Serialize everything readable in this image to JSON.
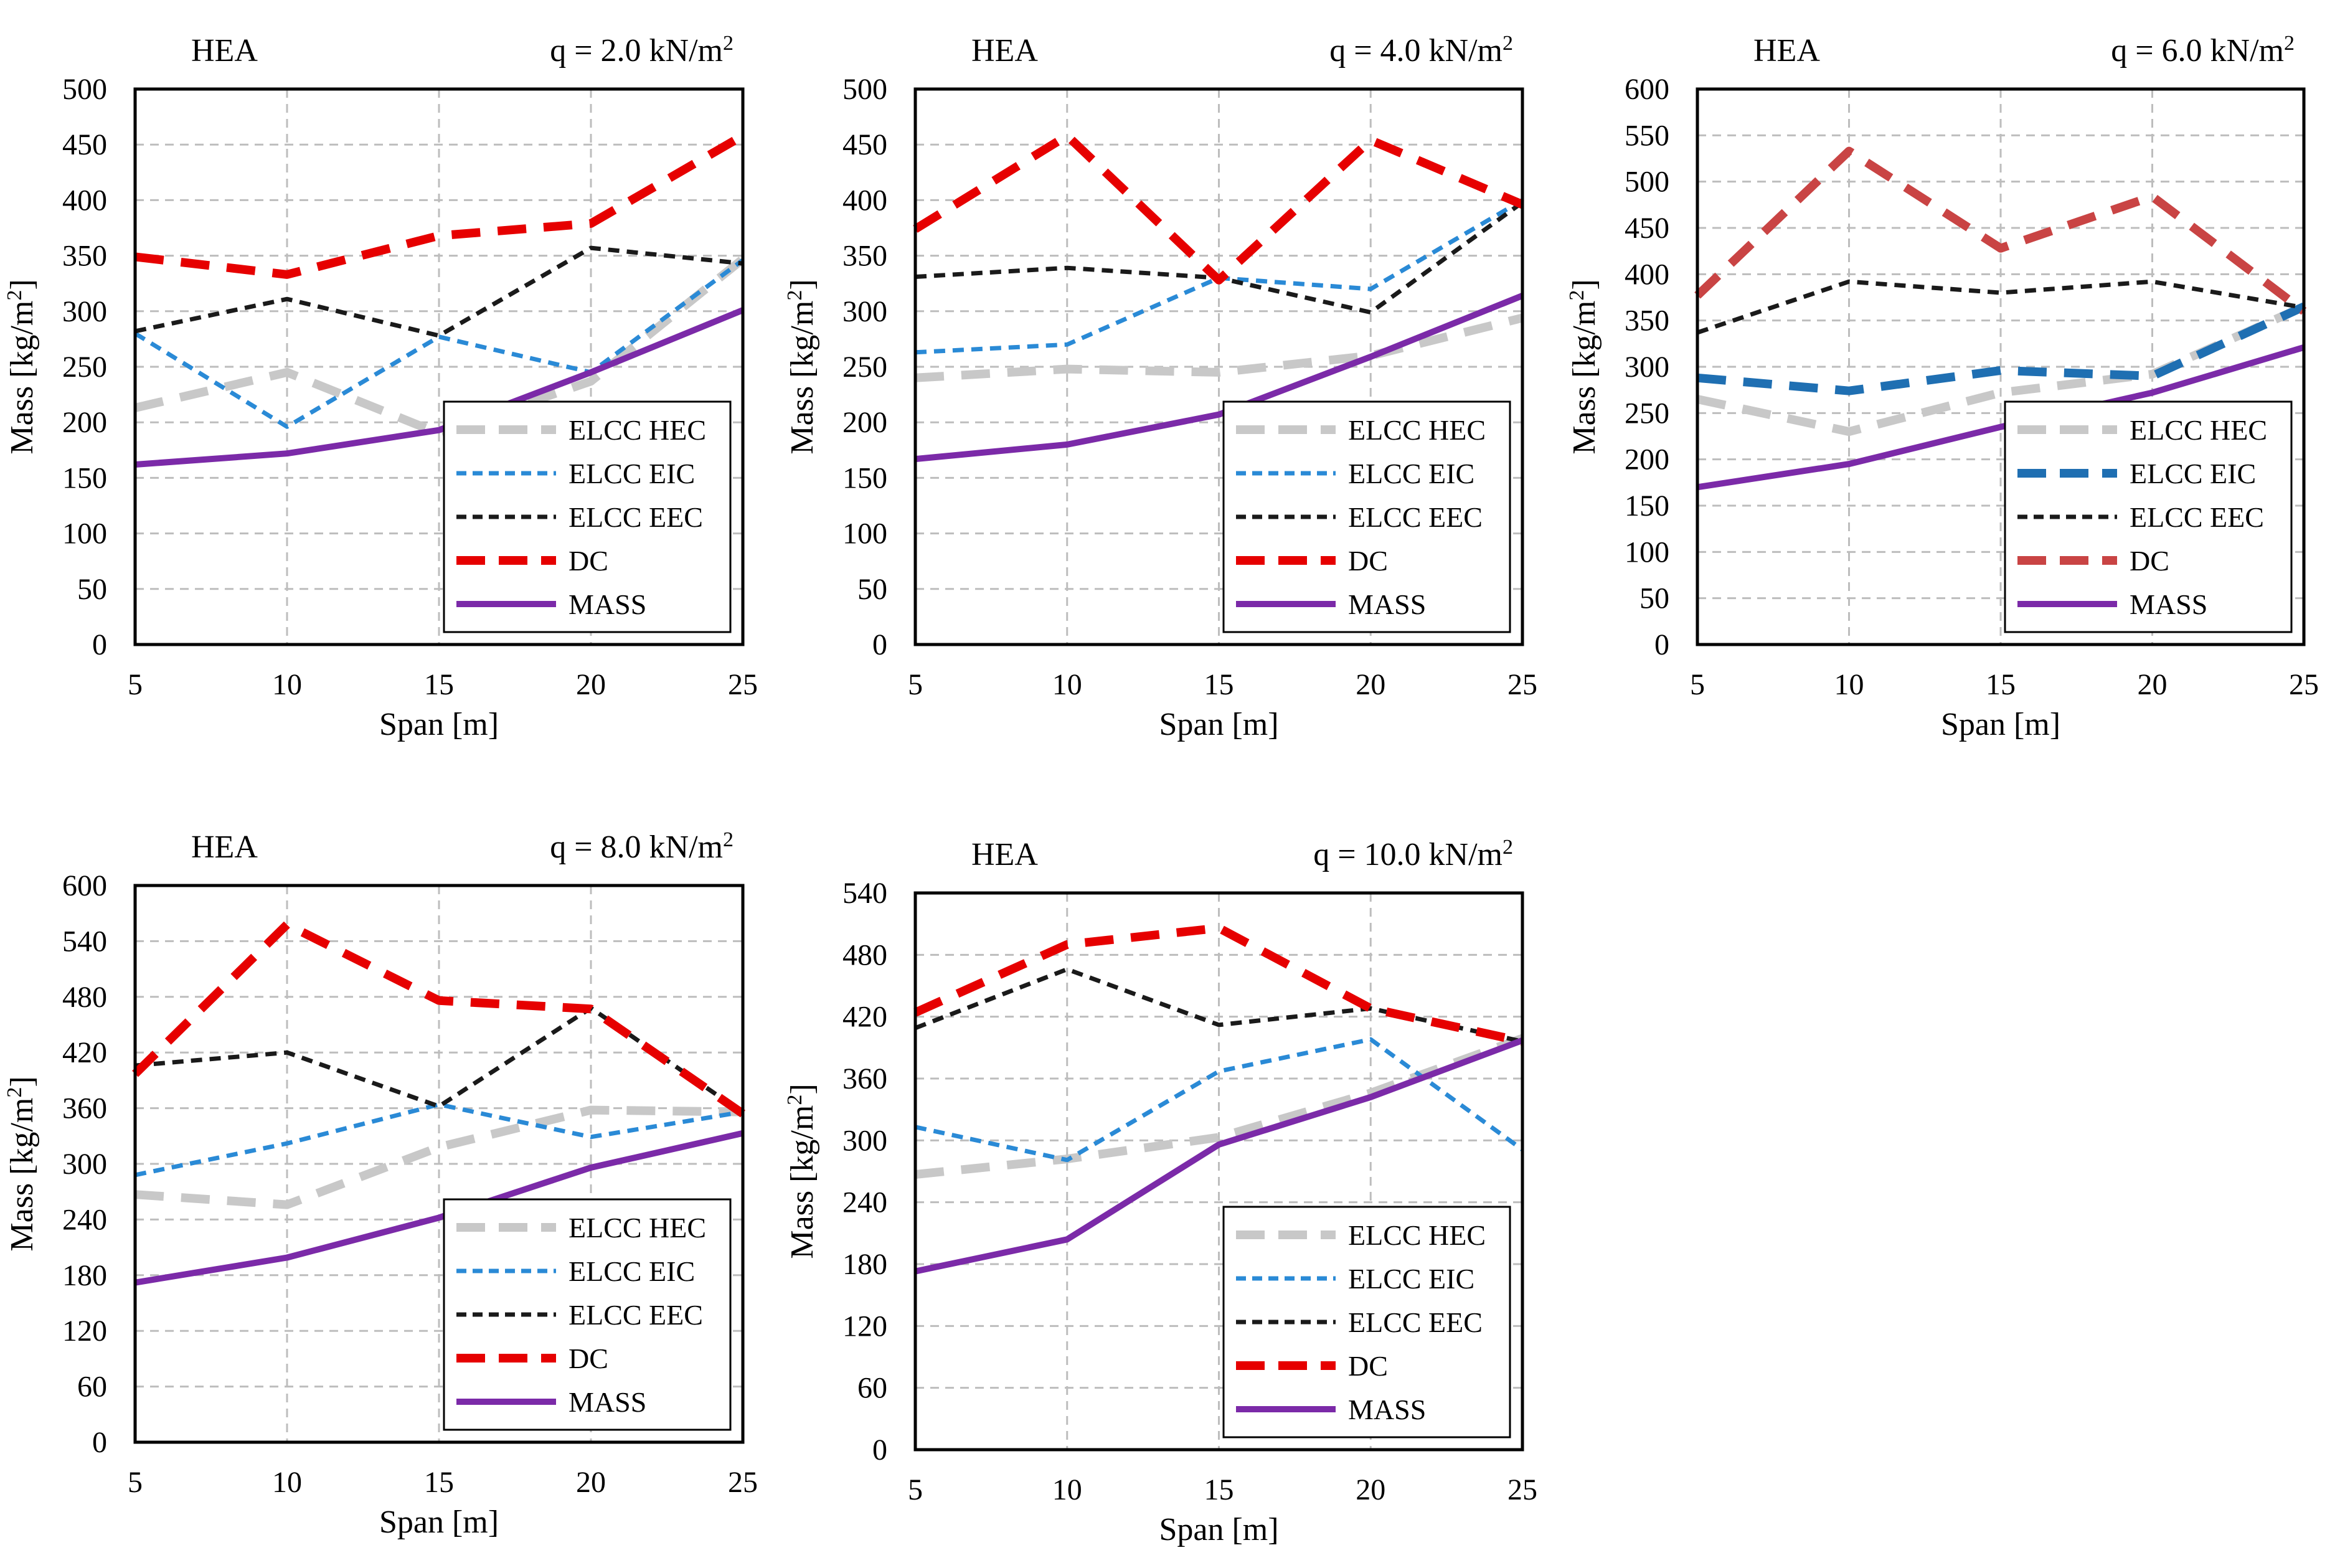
{
  "figure": {
    "description_free": true
  },
  "styles": {
    "HEC": {
      "color": "#c8c8c8",
      "dash": "long"
    },
    "EIC": {
      "color": "#2a8ad6",
      "dash": "short"
    },
    "EEC": {
      "color": "#1a1a1a",
      "dash": "short"
    },
    "DC": {
      "color": "#e60000",
      "dash": "long"
    },
    "MASS": {
      "color": "#7b2aa8",
      "dash": "solid"
    }
  },
  "chart_data": [
    {
      "type": "line",
      "section": "HEA",
      "load_prefix": "q = 2.0 kN/m",
      "load_exp": "2",
      "xlabel": "Span [m]",
      "ylabel_prefix": "Mass [kg/m",
      "ylabel_exp": "2",
      "ylabel_suffix": "]",
      "x": [
        5,
        10,
        15,
        20,
        25
      ],
      "xticks": [
        "5",
        "10",
        "15",
        "20",
        "25"
      ],
      "ylim": [
        0,
        500
      ],
      "yticks": [
        0,
        50,
        100,
        150,
        200,
        250,
        300,
        350,
        400,
        450,
        500
      ],
      "grid": true,
      "legend_position": "lower-right",
      "series": [
        {
          "key": "HEC",
          "name": "ELCC HEC",
          "values": [
            213,
            245,
            190,
            237,
            347
          ]
        },
        {
          "key": "EIC",
          "name": "ELCC EIC",
          "values": [
            280,
            196,
            277,
            245,
            346
          ]
        },
        {
          "key": "EEC",
          "name": "ELCC EEC",
          "values": [
            282,
            311,
            278,
            357,
            343
          ]
        },
        {
          "key": "DC",
          "name": "DC",
          "values": [
            349,
            333,
            368,
            379,
            458
          ]
        },
        {
          "key": "MASS",
          "name": "MASS",
          "values": [
            162,
            172,
            193,
            245,
            301
          ]
        }
      ]
    },
    {
      "type": "line",
      "section": "HEA",
      "load_prefix": "q = 4.0 kN/m",
      "load_exp": "2",
      "xlabel": "Span [m]",
      "ylabel_prefix": "Mass [kg/m",
      "ylabel_exp": "2",
      "ylabel_suffix": "]",
      "x": [
        5,
        10,
        15,
        20,
        25
      ],
      "xticks": [
        "5",
        "10",
        "15",
        "20",
        "25"
      ],
      "ylim": [
        0,
        500
      ],
      "yticks": [
        0,
        50,
        100,
        150,
        200,
        250,
        300,
        350,
        400,
        450,
        500
      ],
      "grid": true,
      "legend_position": "lower-right",
      "series": [
        {
          "key": "HEC",
          "name": "ELCC HEC",
          "values": [
            240,
            248,
            245,
            260,
            294
          ]
        },
        {
          "key": "EIC",
          "name": "ELCC EIC",
          "values": [
            263,
            270,
            330,
            320,
            400
          ]
        },
        {
          "key": "EEC",
          "name": "ELCC EEC",
          "values": [
            331,
            339,
            330,
            299,
            398
          ]
        },
        {
          "key": "DC",
          "name": "DC",
          "values": [
            374,
            458,
            328,
            454,
            396
          ]
        },
        {
          "key": "MASS",
          "name": "MASS",
          "values": [
            167,
            180,
            207,
            259,
            314
          ]
        }
      ]
    },
    {
      "type": "line",
      "section": "HEA",
      "load_prefix": "q = 6.0 kN/m",
      "load_exp": "2",
      "xlabel": "Span [m]",
      "ylabel_prefix": "Mass [kg/m",
      "ylabel_exp": "2",
      "ylabel_suffix": "]",
      "x": [
        5,
        10,
        15,
        20,
        25
      ],
      "xticks": [
        "5",
        "10",
        "15",
        "20",
        "25"
      ],
      "ylim": [
        0,
        600
      ],
      "yticks": [
        0,
        50,
        100,
        150,
        200,
        250,
        300,
        350,
        400,
        450,
        500,
        550,
        600
      ],
      "grid": true,
      "legend_position": "lower-right",
      "series_style_override": {
        "EIC": {
          "color": "#1f6fb2",
          "dash": "long"
        },
        "DC": {
          "color": "#c94444",
          "dash": "long"
        }
      },
      "series": [
        {
          "key": "HEC",
          "name": "ELCC HEC",
          "values": [
            265,
            230,
            272,
            292,
            365
          ]
        },
        {
          "key": "EIC",
          "name": "ELCC EIC",
          "values": [
            288,
            274,
            296,
            290,
            365
          ]
        },
        {
          "key": "EEC",
          "name": "ELCC EEC",
          "values": [
            337,
            392,
            380,
            392,
            364
          ]
        },
        {
          "key": "DC",
          "name": "DC",
          "values": [
            377,
            533,
            428,
            484,
            360
          ]
        },
        {
          "key": "MASS",
          "name": "MASS",
          "values": [
            170,
            195,
            235,
            272,
            321
          ]
        }
      ]
    },
    {
      "type": "line",
      "section": "HEA",
      "load_prefix": "q = 8.0 kN/m",
      "load_exp": "2",
      "xlabel": "Span [m]",
      "ylabel_prefix": "Mass [kg/m",
      "ylabel_exp": "2",
      "ylabel_suffix": "]",
      "x": [
        5,
        10,
        15,
        20,
        25
      ],
      "xticks": [
        "5",
        "10",
        "15",
        "20",
        "25"
      ],
      "ylim": [
        0,
        600
      ],
      "yticks": [
        0,
        60,
        120,
        180,
        240,
        300,
        360,
        420,
        480,
        540,
        600
      ],
      "grid": true,
      "legend_position": "lower-right",
      "series": [
        {
          "key": "HEC",
          "name": "ELCC HEC",
          "values": [
            267,
            256,
            318,
            358,
            356
          ]
        },
        {
          "key": "EIC",
          "name": "ELCC EIC",
          "values": [
            288,
            322,
            364,
            329,
            356
          ]
        },
        {
          "key": "EEC",
          "name": "ELCC EEC",
          "values": [
            406,
            420,
            362,
            468,
            355
          ]
        },
        {
          "key": "DC",
          "name": "DC",
          "values": [
            397,
            558,
            476,
            467,
            354
          ]
        },
        {
          "key": "MASS",
          "name": "MASS",
          "values": [
            172,
            199,
            242,
            296,
            333
          ]
        }
      ]
    },
    {
      "type": "line",
      "section": "HEA",
      "load_prefix": "q = 10.0 kN/m",
      "load_exp": "2",
      "xlabel": "Span [m]",
      "ylabel_prefix": "Mass [kg/m",
      "ylabel_exp": "2",
      "ylabel_suffix": "]",
      "x": [
        5,
        10,
        15,
        20,
        25
      ],
      "xticks": [
        "5",
        "10",
        "15",
        "20",
        "25"
      ],
      "ylim": [
        0,
        540
      ],
      "yticks": [
        0,
        60,
        120,
        180,
        240,
        300,
        360,
        420,
        480,
        540
      ],
      "grid": true,
      "legend_position": "lower-right",
      "series": [
        {
          "key": "HEC",
          "name": "ELCC HEC",
          "values": [
            267,
            282,
            303,
            346,
            399
          ]
        },
        {
          "key": "EIC",
          "name": "ELCC EIC",
          "values": [
            313,
            281,
            367,
            398,
            291
          ]
        },
        {
          "key": "EEC",
          "name": "ELCC EEC",
          "values": [
            409,
            466,
            412,
            428,
            396
          ]
        },
        {
          "key": "DC",
          "name": "DC",
          "values": [
            424,
            490,
            506,
            428,
            396
          ]
        },
        {
          "key": "MASS",
          "name": "MASS",
          "values": [
            173,
            204,
            296,
            342,
            397
          ]
        }
      ]
    }
  ]
}
